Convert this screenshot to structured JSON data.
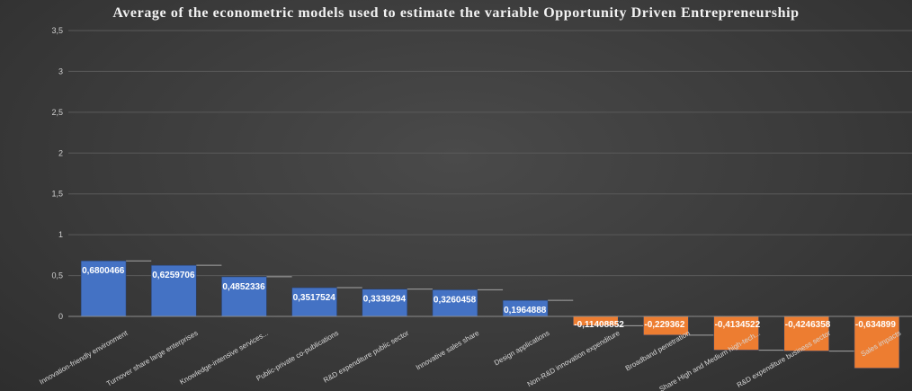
{
  "chart_data": {
    "type": "waterfall",
    "title": "Average of the econometric models used to estimate the variable Opportunity Driven Entrepreneurship",
    "xlabel": "",
    "ylabel": "",
    "ylim": [
      0,
      3.5
    ],
    "yticks": [
      "0",
      "0,5",
      "1",
      "1,5",
      "2",
      "2,5",
      "3",
      "3,5"
    ],
    "grid": true,
    "categories": [
      "Innovation-friendly environment",
      "Turnover share large enterprises",
      "Knowledge-intensive services...",
      "Public-private co-publications",
      "R&D expenditure public sector",
      "Innovative sales share",
      "Design applications",
      "Non-R&D innovation expenditure",
      "Broadband penetration",
      "Share High and Medium high-tech...",
      "R&D expenditure business sector",
      "Sales impacts"
    ],
    "values": [
      0.6800466,
      0.6259706,
      0.4852336,
      0.3517524,
      0.3339294,
      0.3260458,
      0.1964888,
      -0.11408852,
      -0.229362,
      -0.4134522,
      -0.4246358,
      -0.634899
    ],
    "data_labels": [
      "0,6800466",
      "0,6259706",
      "0,4852336",
      "0,3517524",
      "0,3339294",
      "0,3260458",
      "0,1964888",
      "-0,11408852",
      "-0,229362",
      "-0,4134522",
      "-0,4246358",
      "-0,634899"
    ],
    "colors": {
      "increase": "#4472c4",
      "decrease": "#ed7d31",
      "grid": "#5a5a5a",
      "connector": "#a6a6a6"
    }
  }
}
